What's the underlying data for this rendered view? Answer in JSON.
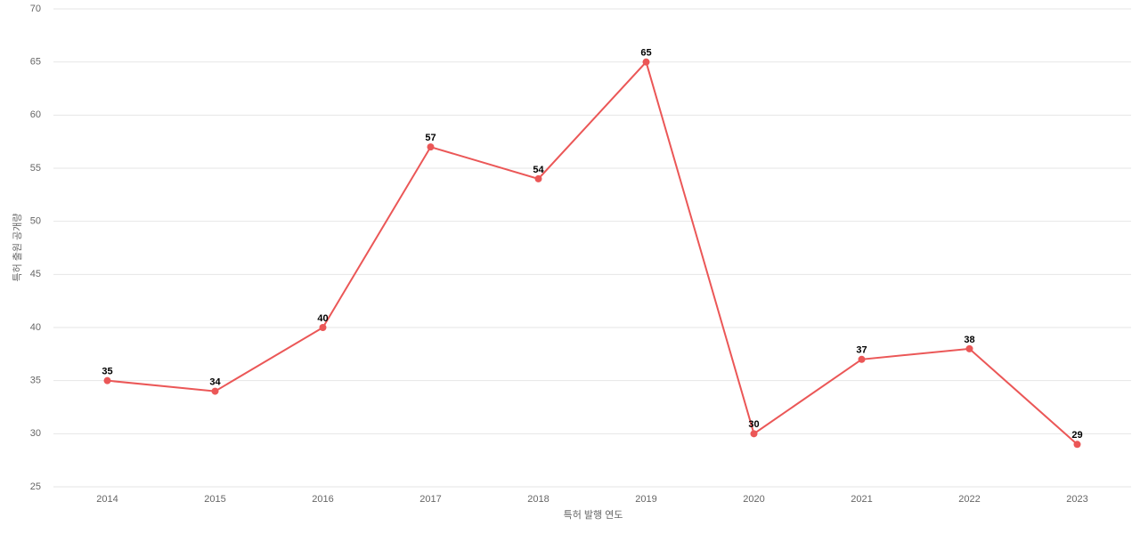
{
  "chart_data": {
    "type": "line",
    "x_label": "특허 발행 연도",
    "y_label": "특허 출원 공개량",
    "categories": [
      "2014",
      "2015",
      "2016",
      "2017",
      "2018",
      "2019",
      "2020",
      "2021",
      "2022",
      "2023"
    ],
    "series": [
      {
        "name": "특허 출원 공개량",
        "color": "#eb5757",
        "values": [
          35,
          34,
          40,
          57,
          54,
          65,
          30,
          37,
          38,
          29
        ]
      }
    ],
    "ylim": [
      25,
      70
    ],
    "yticks": [
      25,
      30,
      35,
      40,
      45,
      50,
      55,
      60,
      65,
      70
    ],
    "grid": true
  }
}
